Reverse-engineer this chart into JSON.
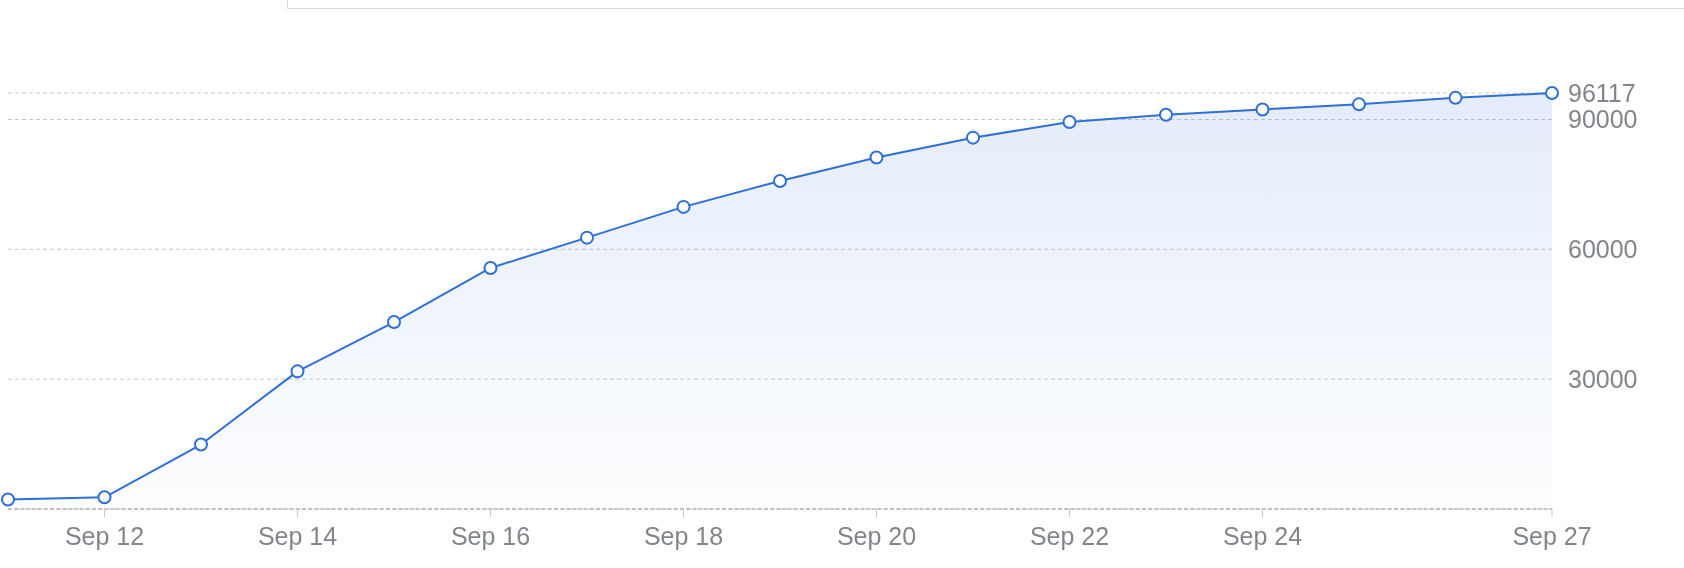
{
  "chart_data": {
    "type": "area",
    "x": [
      "--09-11",
      "--09-12",
      "--09-13",
      "--09-14",
      "--09-15",
      "--09-16",
      "--09-17",
      "--09-18",
      "--09-19",
      "--09-20",
      "--09-21",
      "--09-22",
      "--09-23",
      "--09-24",
      "--09-25",
      "--09-26",
      "--09-27"
    ],
    "series": [
      {
        "color": "#2e6fd8",
        "values": [
          2200,
          2700,
          14900,
          31800,
          43200,
          55700,
          62700,
          69800,
          75800,
          81200,
          85800,
          89400,
          91100,
          92300,
          93500,
          95000,
          96117
        ]
      }
    ],
    "xlim": [
      "--09-11",
      "--09-27"
    ],
    "xticks": [
      {
        "value": "--09-12",
        "label": "Sep 12"
      },
      {
        "value": "--09-14",
        "label": "Sep 14"
      },
      {
        "value": "--09-16",
        "label": "Sep 16"
      },
      {
        "value": "--09-18",
        "label": "Sep 18"
      },
      {
        "value": "--09-20",
        "label": "Sep 20"
      },
      {
        "value": "--09-22",
        "label": "Sep 22"
      },
      {
        "value": "--09-24",
        "label": "Sep 24"
      },
      {
        "value": "--09-27",
        "label": "Sep 27"
      }
    ],
    "ylim": [
      0,
      96117
    ],
    "yticks": [
      {
        "value": 0,
        "label": null
      },
      30000,
      60000,
      90000,
      96117
    ],
    "grid": "y",
    "marker": "circle"
  }
}
